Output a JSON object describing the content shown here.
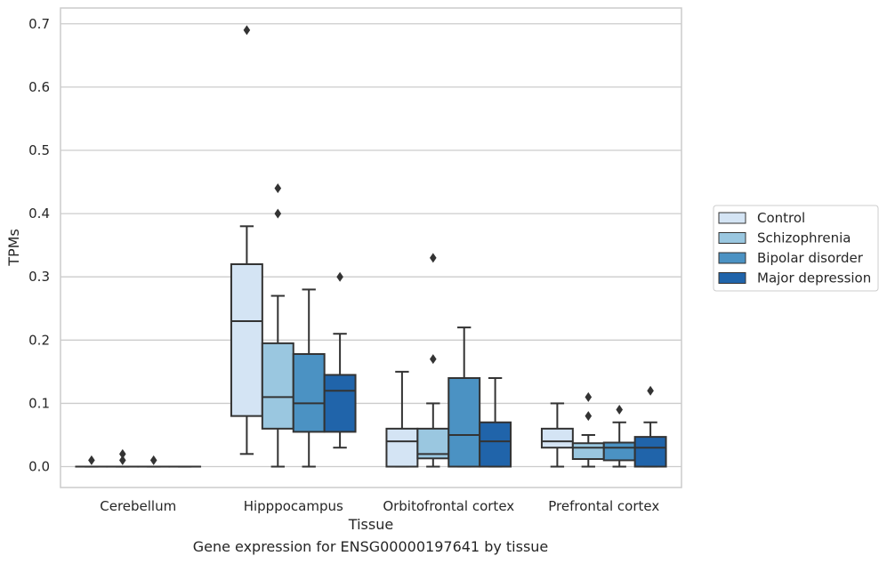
{
  "caption": "Gene expression for ENSG00000197641 by tissue",
  "colors": {
    "grid": "#cccccc",
    "frame": "#cccccc",
    "line": "#333333",
    "series": [
      "#d4e4f4",
      "#9ac7e0",
      "#4b92c3",
      "#2064aa"
    ]
  },
  "chart_data": {
    "type": "boxplot",
    "xlabel": "Tissue",
    "ylabel": "TPMs",
    "ylim": [
      -0.033,
      0.725
    ],
    "yticks": [
      0.0,
      0.1,
      0.2,
      0.3,
      0.4,
      0.5,
      0.6,
      0.7
    ],
    "ytick_labels": [
      "0.0",
      "0.1",
      "0.2",
      "0.3",
      "0.4",
      "0.5",
      "0.6",
      "0.7"
    ],
    "grid": true,
    "legend_placement": "right",
    "categories": [
      "Cerebellum",
      "Hipppocampus",
      "Orbitofrontal cortex",
      "Prefrontal cortex"
    ],
    "series": [
      {
        "name": "Control",
        "boxes": [
          {
            "q1": 0.0,
            "median": 0.0,
            "q3": 0.0,
            "whislo": 0.0,
            "whishi": 0.0,
            "fliers": [
              0.01
            ]
          },
          {
            "q1": 0.08,
            "median": 0.23,
            "q3": 0.32,
            "whislo": 0.02,
            "whishi": 0.38,
            "fliers": [
              0.69
            ]
          },
          {
            "q1": 0.0,
            "median": 0.04,
            "q3": 0.06,
            "whislo": 0.0,
            "whishi": 0.15,
            "fliers": []
          },
          {
            "q1": 0.03,
            "median": 0.04,
            "q3": 0.06,
            "whislo": 0.0,
            "whishi": 0.1,
            "fliers": []
          }
        ]
      },
      {
        "name": "Schizophrenia",
        "boxes": [
          {
            "q1": 0.0,
            "median": 0.0,
            "q3": 0.0,
            "whislo": 0.0,
            "whishi": 0.0,
            "fliers": [
              0.02,
              0.01
            ]
          },
          {
            "q1": 0.06,
            "median": 0.11,
            "q3": 0.195,
            "whislo": 0.0,
            "whishi": 0.27,
            "fliers": [
              0.44,
              0.4
            ]
          },
          {
            "q1": 0.013,
            "median": 0.02,
            "q3": 0.06,
            "whislo": 0.0,
            "whishi": 0.1,
            "fliers": [
              0.33,
              0.17
            ]
          },
          {
            "q1": 0.012,
            "median": 0.03,
            "q3": 0.037,
            "whislo": 0.0,
            "whishi": 0.05,
            "fliers": [
              0.11,
              0.08
            ]
          }
        ]
      },
      {
        "name": "Bipolar disorder",
        "boxes": [
          {
            "q1": 0.0,
            "median": 0.0,
            "q3": 0.0,
            "whislo": 0.0,
            "whishi": 0.0,
            "fliers": [
              0.01
            ]
          },
          {
            "q1": 0.055,
            "median": 0.1,
            "q3": 0.178,
            "whislo": 0.0,
            "whishi": 0.28,
            "fliers": []
          },
          {
            "q1": 0.0,
            "median": 0.05,
            "q3": 0.14,
            "whislo": 0.0,
            "whishi": 0.22,
            "fliers": []
          },
          {
            "q1": 0.01,
            "median": 0.03,
            "q3": 0.038,
            "whislo": 0.0,
            "whishi": 0.07,
            "fliers": [
              0.09
            ]
          }
        ]
      },
      {
        "name": "Major depression",
        "boxes": [
          {
            "q1": 0.0,
            "median": 0.0,
            "q3": 0.0,
            "whislo": 0.0,
            "whishi": 0.0,
            "fliers": []
          },
          {
            "q1": 0.055,
            "median": 0.12,
            "q3": 0.145,
            "whislo": 0.03,
            "whishi": 0.21,
            "fliers": [
              0.3
            ]
          },
          {
            "q1": 0.0,
            "median": 0.04,
            "q3": 0.07,
            "whislo": 0.0,
            "whishi": 0.14,
            "fliers": []
          },
          {
            "q1": 0.0,
            "median": 0.03,
            "q3": 0.047,
            "whislo": 0.0,
            "whishi": 0.07,
            "fliers": [
              0.12
            ]
          }
        ]
      }
    ]
  }
}
